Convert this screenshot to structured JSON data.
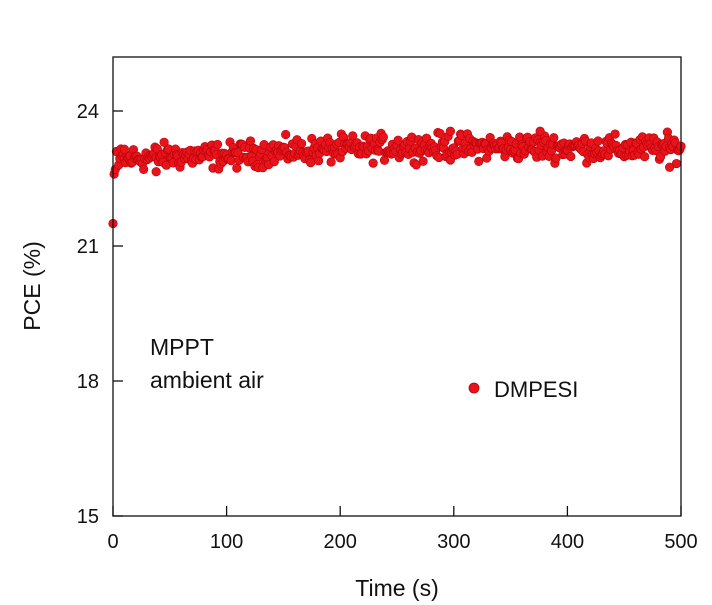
{
  "chart_data": {
    "type": "scatter",
    "xlabel": "Time (s)",
    "ylabel": "PCE (%)",
    "xlim": [
      0,
      500
    ],
    "ylim": [
      15,
      25.2
    ],
    "xticks": [
      0,
      100,
      200,
      300,
      400,
      500
    ],
    "yticks": [
      15,
      18,
      21,
      24
    ],
    "xtick_labels": [
      "0",
      "100",
      "200",
      "300",
      "400",
      "500"
    ],
    "ytick_labels": [
      "15",
      "18",
      "21",
      "24"
    ],
    "grid": false,
    "annotations": [
      "MPPT",
      "ambient air"
    ],
    "legend": {
      "position": "lower-right",
      "entries": [
        "DMPESI"
      ]
    },
    "series": [
      {
        "name": "DMPESI",
        "color": "#e8141b",
        "points_description": "PCE stays roughly between 22.7% and 23.5% over 0-500 s, with an initial point near 21.5%",
        "initial_points": [
          [
            0,
            21.5
          ],
          [
            1,
            22.6
          ],
          [
            2,
            22.7
          ],
          [
            3,
            23.1
          ],
          [
            5,
            22.8
          ]
        ],
        "mean_curve": [
          [
            0,
            22.9
          ],
          [
            20,
            22.95
          ],
          [
            50,
            23.0
          ],
          [
            100,
            23.0
          ],
          [
            150,
            23.1
          ],
          [
            200,
            23.15
          ],
          [
            250,
            23.2
          ],
          [
            300,
            23.2
          ],
          [
            350,
            23.2
          ],
          [
            400,
            23.2
          ],
          [
            450,
            23.15
          ],
          [
            500,
            23.2
          ]
        ],
        "outliers": [
          [
            297,
            23.55
          ],
          [
            376,
            23.55
          ],
          [
            490,
            22.75
          ],
          [
            38,
            22.65
          ],
          [
            10,
            23.15
          ]
        ]
      }
    ]
  }
}
